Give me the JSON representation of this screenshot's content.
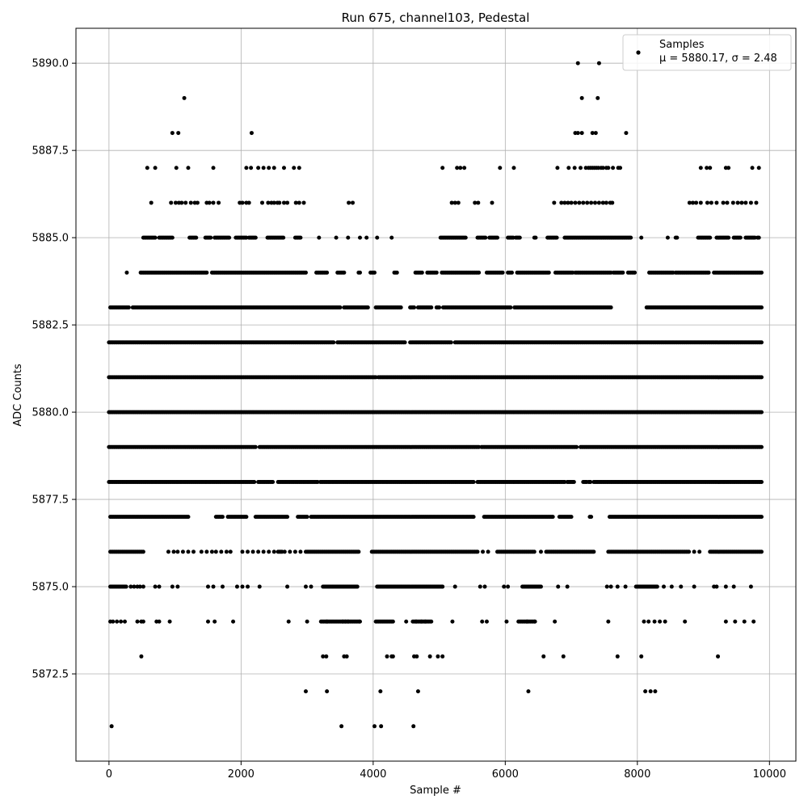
{
  "chart_data": {
    "type": "scatter",
    "title": "Run 675, channel103, Pedestal",
    "xlabel": "Sample #",
    "ylabel": "ADC Counts",
    "xlim": [
      -500,
      10400
    ],
    "ylim": [
      5870.0,
      5891.0
    ],
    "xticks": [
      0,
      2000,
      4000,
      6000,
      8000,
      10000
    ],
    "xtick_labels": [
      "0",
      "2000",
      "4000",
      "6000",
      "8000",
      "10000"
    ],
    "yticks": [
      5872.5,
      5875.0,
      5877.5,
      5880.0,
      5882.5,
      5885.0,
      5887.5,
      5890.0
    ],
    "ytick_labels": [
      "5872.5",
      "5875.0",
      "5877.5",
      "5880.0",
      "5882.5",
      "5885.0",
      "5887.5",
      "5890.0"
    ],
    "grid": true,
    "legend_position": "top-right",
    "marker_color": "#000000",
    "series": [
      {
        "name": "Samples",
        "stats_label": "μ = 5880.17, σ = 2.48",
        "n_samples": 9900,
        "mean": 5880.17,
        "std": 2.48,
        "levels": [
          {
            "y": 5871,
            "x": [
              40,
              3520,
              4020,
              4120,
              4610
            ]
          },
          {
            "y": 5872,
            "x": [
              2980,
              3300,
              4110,
              4680,
              6350,
              8120,
              8200,
              8270
            ]
          },
          {
            "y": 5873,
            "x": [
              490,
              3240,
              3290,
              3560,
              3600,
              4210,
              4280,
              4300,
              4620,
              4660,
              4860,
              4980,
              5050,
              6580,
              6880,
              7700,
              8060,
              9220
            ]
          },
          {
            "y": 5874,
            "x": [
              20,
              60,
              120,
              180,
              240,
              430,
              490,
              520,
              720,
              760,
              920,
              1500,
              1600,
              1880,
              2720,
              3000,
              3210,
              3300,
              3540,
              3580,
              3620,
              3750,
              4040,
              4100,
              4160,
              4220,
              4280,
              4500,
              4650,
              4730,
              4790,
              4860,
              5200,
              5650,
              5720,
              6020,
              6200,
              6260,
              6330,
              6400,
              6450,
              6750,
              7560,
              8100,
              8170,
              8260,
              8340,
              8420,
              8720,
              9340,
              9480,
              9620,
              9760
            ],
            "spans": [
              [
                3210,
                3800
              ],
              [
                4040,
                4300
              ],
              [
                4600,
                4880
              ],
              [
                6200,
                6450
              ]
            ]
          },
          {
            "y": 5875,
            "x": [
              20,
              80,
              120,
              200,
              260,
              330,
              380,
              430,
              470,
              520,
              700,
              760,
              960,
              1040,
              1500,
              1580,
              1720,
              1940,
              2020,
              2100,
              2280,
              2700,
              2980,
              3060,
              3240,
              3320,
              3420,
              3500,
              3560,
              3620,
              3700,
              3760,
              4060,
              4120,
              4180,
              4260,
              4340,
              4420,
              4500,
              4580,
              4660,
              4740,
              4820,
              4900,
              4980,
              5050,
              5240,
              5620,
              5690,
              5980,
              6040,
              6260,
              6340,
              6420,
              6540,
              6800,
              6940,
              7540,
              7600,
              7700,
              7820,
              7980,
              8060,
              8140,
              8220,
              8300,
              8400,
              8520,
              8660,
              8860,
              9160,
              9200,
              9340,
              9460,
              9720
            ],
            "spans": [
              [
                20,
                240
              ],
              [
                3240,
                3760
              ],
              [
                4060,
                5050
              ],
              [
                6260,
                6540
              ],
              [
                7980,
                8300
              ]
            ]
          },
          {
            "y": 5876,
            "x": [
              20,
              100,
              180,
              260,
              340,
              420,
              500,
              900,
              980,
              1040,
              1120,
              1200,
              1280,
              1400,
              1480,
              1560,
              1620,
              1700,
              1780,
              1840,
              2020,
              2100,
              2180,
              2260,
              2340,
              2420,
              2500,
              2580,
              2660,
              2740,
              2820,
              2900,
              2980,
              3060,
              3140,
              3220,
              3300,
              3380,
              3460,
              3540,
              3620,
              3700,
              3780,
              3980,
              4060,
              4140,
              4220,
              4300,
              4380,
              4460,
              4540,
              4620,
              4700,
              4780,
              4860,
              4940,
              5020,
              5100,
              5180,
              5260,
              5340,
              5420,
              5500,
              5580,
              5660,
              5740,
              5900,
              5980,
              6060,
              6140,
              6220,
              6300,
              6380,
              6540,
              6620,
              6700,
              6780,
              6860,
              6940,
              7020,
              7100,
              7180,
              7260,
              7340,
              7580,
              7660,
              7740,
              7820,
              7900,
              7980,
              8060,
              8140,
              8220,
              8300,
              8380,
              8460,
              8540,
              8620,
              8700,
              8780,
              8860,
              8940,
              9100,
              9180,
              9260,
              9340,
              9420,
              9500,
              9580,
              9660,
              9740,
              9820,
              9880
            ],
            "spans": [
              [
                20,
                520
              ],
              [
                2560,
                2620
              ],
              [
                2980,
                3780
              ],
              [
                3980,
                5560
              ],
              [
                5880,
                6440
              ],
              [
                6620,
                7320
              ],
              [
                7560,
                8760
              ],
              [
                9100,
                9880
              ]
            ]
          },
          {
            "y": 5877,
            "x": [],
            "spans": [
              [
                20,
                1200
              ],
              [
                1620,
                1720
              ],
              [
                1800,
                2080
              ],
              [
                2220,
                2700
              ],
              [
                2860,
                3000
              ],
              [
                3060,
                5520
              ],
              [
                5680,
                6720
              ],
              [
                6820,
                7000
              ],
              [
                7280,
                7300
              ],
              [
                7580,
                9880
              ]
            ]
          },
          {
            "y": 5878,
            "x": [],
            "spans": [
              [
                0,
                2200
              ],
              [
                2260,
                2480
              ],
              [
                2560,
                3160
              ],
              [
                3200,
                5520
              ],
              [
                5580,
                6900
              ],
              [
                6940,
                7040
              ],
              [
                7180,
                7230
              ],
              [
                7260,
                7290
              ],
              [
                7340,
                9880
              ]
            ]
          },
          {
            "y": 5879,
            "x": [],
            "spans": [
              [
                0,
                2220
              ],
              [
                2280,
                5600
              ],
              [
                5640,
                7080
              ],
              [
                7140,
                9880
              ]
            ]
          },
          {
            "y": 5880,
            "x": [],
            "spans": [
              [
                0,
                9880
              ]
            ]
          },
          {
            "y": 5881,
            "x": [],
            "spans": [
              [
                0,
                4040
              ],
              [
                4080,
                9880
              ]
            ]
          },
          {
            "y": 5882,
            "x": [],
            "spans": [
              [
                0,
                3400
              ],
              [
                3460,
                4480
              ],
              [
                4560,
                5180
              ],
              [
                5240,
                9880
              ]
            ]
          },
          {
            "y": 5883,
            "x": [],
            "spans": [
              [
                20,
                300
              ],
              [
                360,
                3500
              ],
              [
                3560,
                3920
              ],
              [
                4040,
                4420
              ],
              [
                4560,
                4620
              ],
              [
                4680,
                4880
              ],
              [
                4960,
                5000
              ],
              [
                5060,
                6080
              ],
              [
                6140,
                7600
              ],
              [
                8140,
                9880
              ]
            ]
          },
          {
            "y": 5884,
            "x": [],
            "spans": [
              [
                270,
                270
              ],
              [
                480,
                1480
              ],
              [
                1560,
                2980
              ],
              [
                3140,
                3300
              ],
              [
                3460,
                3560
              ],
              [
                3780,
                3800
              ],
              [
                3960,
                4020
              ],
              [
                4320,
                4360
              ],
              [
                4640,
                4740
              ],
              [
                4820,
                4960
              ],
              [
                5040,
                5600
              ],
              [
                5720,
                5960
              ],
              [
                6040,
                6100
              ],
              [
                6180,
                6660
              ],
              [
                6760,
                7020
              ],
              [
                7060,
                7600
              ],
              [
                7640,
                7780
              ],
              [
                7860,
                7960
              ],
              [
                8180,
                8540
              ],
              [
                8580,
                9080
              ],
              [
                9160,
                9880
              ]
            ]
          },
          {
            "y": 5885,
            "x": [
              3180,
              3440,
              3620,
              3800,
              3900,
              4060,
              4280,
              8060,
              8460,
              9100
            ],
            "spans": [
              [
                520,
                700
              ],
              [
                760,
                960
              ],
              [
                1220,
                1320
              ],
              [
                1460,
                1540
              ],
              [
                1600,
                1740
              ],
              [
                1760,
                1820
              ],
              [
                1920,
                2080
              ],
              [
                2120,
                2220
              ],
              [
                2400,
                2640
              ],
              [
                2820,
                2900
              ],
              [
                5020,
                5240
              ],
              [
                5260,
                5400
              ],
              [
                5580,
                5700
              ],
              [
                5760,
                5880
              ],
              [
                6040,
                6120
              ],
              [
                6160,
                6220
              ],
              [
                6440,
                6460
              ],
              [
                6640,
                6780
              ],
              [
                6900,
                6980
              ],
              [
                7000,
                7900
              ],
              [
                8580,
                8600
              ],
              [
                8920,
                9080
              ],
              [
                9200,
                9380
              ],
              [
                9460,
                9560
              ],
              [
                9640,
                9780
              ],
              [
                9820,
                9840
              ]
            ]
          },
          {
            "y": 5886,
            "x": [
              640,
              940,
              1010,
              1060,
              1100,
              1160,
              1240,
              1300,
              1340,
              1480,
              1520,
              1580,
              1660,
              1980,
              2020,
              2080,
              2120,
              2320,
              2410,
              2460,
              2500,
              2550,
              2580,
              2650,
              2700,
              2830,
              2880,
              2950,
              3630,
              3690,
              5190,
              5240,
              5290,
              5540,
              5590,
              5800,
              6740,
              6850,
              6900,
              6950,
              7000,
              7060,
              7120,
              7180,
              7240,
              7300,
              7360,
              7420,
              7480,
              7530,
              7590,
              7620,
              8790,
              8840,
              8890,
              8960,
              9060,
              9120,
              9200,
              9300,
              9360,
              9450,
              9520,
              9580,
              9640,
              9720,
              9800
            ],
            "spans": []
          },
          {
            "y": 5887,
            "x": [
              580,
              700,
              1020,
              1200,
              1580,
              2080,
              2150,
              2260,
              2340,
              2420,
              2500,
              2650,
              2800,
              2880,
              5050,
              5270,
              5320,
              5380,
              5920,
              6130,
              6790,
              6960,
              7050,
              7140,
              7220,
              7260,
              7290,
              7320,
              7350,
              7380,
              7410,
              7450,
              7480,
              7530,
              7560,
              7630,
              7710,
              7740,
              8960,
              9050,
              9100,
              9340,
              9380,
              9740,
              9840
            ],
            "spans": []
          },
          {
            "y": 5888,
            "x": [
              960,
              1050,
              2160,
              7060,
              7100,
              7160,
              7320,
              7370,
              7830
            ],
            "spans": []
          },
          {
            "y": 5889,
            "x": [
              1140,
              7160,
              7400
            ],
            "spans": []
          },
          {
            "y": 5890,
            "x": [
              7100,
              7420
            ],
            "spans": []
          }
        ]
      }
    ]
  }
}
